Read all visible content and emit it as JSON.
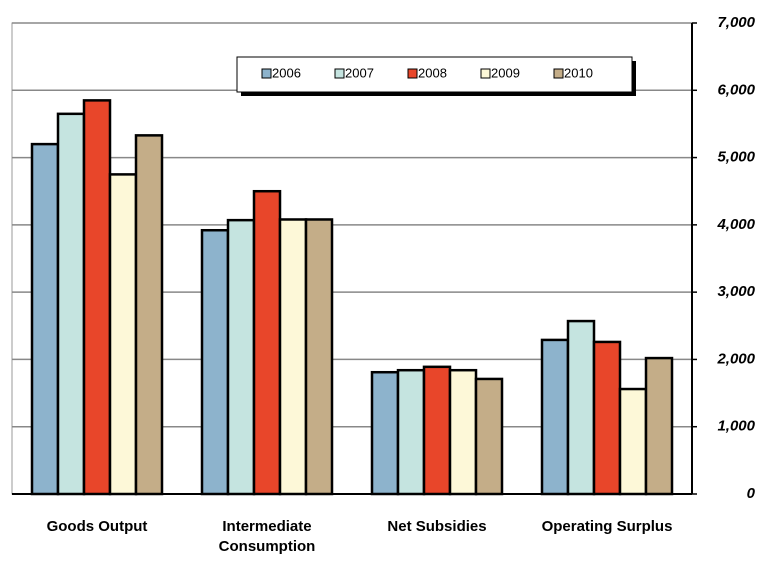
{
  "chart_data": {
    "type": "bar",
    "categories": [
      "Goods Output",
      "Intermediate Consumption",
      "Net Subsidies",
      "Operating Surplus"
    ],
    "series": [
      {
        "name": "2006",
        "color": "#8db3cc",
        "values": [
          5200,
          3920,
          1810,
          2290
        ]
      },
      {
        "name": "2007",
        "color": "#c5e4e0",
        "values": [
          5650,
          4070,
          1840,
          2570
        ]
      },
      {
        "name": "2008",
        "color": "#e8462a",
        "values": [
          5850,
          4500,
          1890,
          2260
        ]
      },
      {
        "name": "2009",
        "color": "#fdf8d8",
        "values": [
          4750,
          4080,
          1840,
          1560
        ]
      },
      {
        "name": "2010",
        "color": "#c4ad88",
        "values": [
          5330,
          4080,
          1710,
          2020
        ]
      }
    ],
    "ylim": [
      0,
      7000
    ],
    "yticks": [
      0,
      {
        "value": 1000,
        "label": "1,000"
      },
      {
        "value": 2000,
        "label": "2,000"
      },
      {
        "value": 3000,
        "label": "3,000"
      },
      {
        "value": 4000,
        "label": "4,000"
      },
      {
        "value": 5000,
        "label": "5,000"
      },
      {
        "value": 6000,
        "label": "6,000"
      },
      {
        "value": 7000,
        "label": "7,000"
      }
    ],
    "grid": true
  }
}
